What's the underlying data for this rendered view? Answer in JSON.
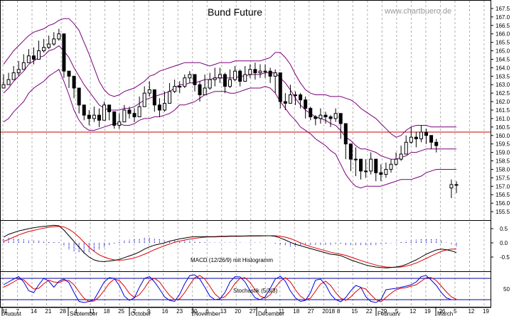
{
  "chart_data": {
    "type": "candlestick",
    "title": "Bund Future",
    "watermark": "www.chartbuero.de",
    "colors": {
      "price": "#000000",
      "bollinger": "#7a007a",
      "support_line": "#cc0000",
      "macd": "#000000",
      "signal": "#dd0000",
      "histogram": "#0000cc",
      "stoch_k": "#0000dd",
      "stoch_d": "#dd0000",
      "stoch_levels": "#0000aa",
      "grid": "#b0b0b0"
    },
    "price_panel": {
      "ylim": [
        155.0,
        168.0
      ],
      "yticks": [
        "155.5",
        "156.0",
        "156.5",
        "157.0",
        "157.5",
        "158.0",
        "158.5",
        "159.0",
        "159.5",
        "160.0",
        "160.5",
        "161.0",
        "161.5",
        "162.0",
        "162.5",
        "163.0",
        "163.5",
        "164.0",
        "164.5",
        "165.0",
        "165.5",
        "166.0",
        "166.5",
        "167.0",
        "167.5"
      ],
      "horizontal_line": 160.2,
      "close": [
        163.0,
        163.3,
        163.7,
        163.9,
        164.3,
        164.7,
        164.5,
        165.0,
        165.2,
        165.4,
        165.7,
        166.0,
        163.8,
        163.5,
        162.8,
        161.8,
        161.2,
        161.0,
        161.2,
        160.9,
        161.8,
        161.4,
        160.6,
        160.8,
        161.5,
        161.3,
        161.1,
        161.7,
        162.5,
        162.7,
        161.8,
        161.5,
        161.9,
        162.6,
        162.9,
        162.9,
        163.4,
        163.6,
        163.0,
        162.4,
        162.8,
        163.3,
        163.4,
        163.6,
        162.9,
        163.3,
        163.8,
        163.2,
        163.6,
        163.9,
        163.7,
        163.8,
        163.8,
        163.5,
        163.7,
        162.0,
        161.9,
        162.4,
        162.4,
        162.1,
        161.6,
        161.1,
        161.0,
        161.2,
        161.1,
        161.0,
        161.3,
        160.7,
        159.5,
        158.6,
        158.6,
        157.9,
        157.9,
        158.6,
        157.8,
        157.7,
        158.0,
        158.3,
        158.6,
        158.9,
        159.6,
        159.9,
        159.8,
        160.2,
        160.0,
        159.6,
        159.4,
        null,
        null,
        157.1,
        157.1
      ],
      "high": [
        163.6,
        163.7,
        164.1,
        164.4,
        164.8,
        165.1,
        165.2,
        165.6,
        165.7,
        165.9,
        166.1,
        166.3,
        164.0,
        163.6,
        163.1,
        162.3,
        161.7,
        161.5,
        161.7,
        161.6,
        162.0,
        161.6,
        161.2,
        161.3,
        161.8,
        161.7,
        161.6,
        162.3,
        162.9,
        163.2,
        162.2,
        162.2,
        162.6,
        163.1,
        163.3,
        163.2,
        163.6,
        163.8,
        163.5,
        163.2,
        163.6,
        163.7,
        164.0,
        164.0,
        163.7,
        163.9,
        164.1,
        163.9,
        164.1,
        164.2,
        164.3,
        164.2,
        164.2,
        164.0,
        163.9,
        163.1,
        162.5,
        163.0,
        162.6,
        162.5,
        162.3,
        161.7,
        161.2,
        161.6,
        161.4,
        161.2,
        161.6,
        161.2,
        160.2,
        159.5,
        159.3,
        158.6,
        158.6,
        159.0,
        158.5,
        158.3,
        158.4,
        158.6,
        159.0,
        159.4,
        160.0,
        160.5,
        160.2,
        160.6,
        160.4,
        160.0,
        159.8,
        null,
        null,
        157.4,
        157.3
      ],
      "low": [
        162.8,
        163.0,
        163.3,
        163.5,
        164.0,
        164.3,
        164.2,
        164.6,
        164.9,
        165.1,
        165.3,
        165.6,
        163.4,
        162.8,
        162.2,
        161.3,
        160.9,
        160.6,
        160.8,
        160.5,
        161.2,
        160.9,
        160.4,
        160.4,
        161.0,
        161.0,
        160.8,
        161.3,
        162.1,
        162.3,
        161.4,
        161.1,
        161.4,
        162.2,
        162.5,
        162.5,
        162.8,
        163.1,
        162.6,
        162.0,
        162.4,
        162.7,
        162.9,
        163.1,
        162.5,
        162.8,
        163.2,
        162.9,
        163.2,
        163.4,
        163.3,
        163.4,
        163.4,
        163.1,
        162.5,
        161.6,
        161.5,
        161.9,
        161.8,
        161.6,
        161.0,
        160.9,
        160.6,
        160.7,
        160.7,
        160.5,
        160.8,
        159.8,
        158.6,
        157.9,
        157.6,
        157.4,
        157.5,
        157.7,
        157.3,
        157.3,
        157.5,
        157.8,
        158.2,
        158.5,
        159.0,
        159.5,
        159.3,
        159.6,
        159.5,
        159.2,
        159.0,
        null,
        null,
        156.3,
        156.6
      ],
      "bb_upper": [
        164.2,
        164.6,
        165.0,
        165.3,
        165.6,
        165.9,
        166.1,
        166.2,
        166.3,
        166.5,
        166.6,
        166.8,
        166.9,
        166.9,
        166.6,
        166.2,
        165.5,
        164.8,
        164.0,
        163.2,
        162.7,
        162.4,
        162.3,
        162.4,
        162.6,
        162.7,
        162.8,
        163.0,
        163.2,
        163.5,
        163.6,
        163.8,
        163.9,
        164.0,
        164.1,
        164.2,
        164.3,
        164.3,
        164.3,
        164.3,
        164.2,
        164.1,
        164.2,
        164.3,
        164.3,
        164.3,
        164.4,
        164.4,
        164.4,
        164.4,
        164.4,
        164.4,
        164.5,
        164.6,
        164.9,
        164.9,
        164.6,
        164.2,
        163.6,
        163.1,
        162.7,
        162.5,
        162.4,
        162.4,
        162.4,
        162.3,
        162.3,
        162.3,
        162.2,
        162.1,
        161.9,
        161.6,
        161.4,
        161.2,
        161.0,
        160.7,
        160.4,
        160.1,
        159.9,
        160.0,
        160.3,
        160.5,
        160.6,
        160.6,
        160.6,
        160.5,
        160.5,
        160.5,
        160.5,
        160.5,
        160.5
      ],
      "bb_lower": [
        160.8,
        161.0,
        161.4,
        161.7,
        162.0,
        162.5,
        162.8,
        163.0,
        163.2,
        163.5,
        163.7,
        163.9,
        163.2,
        162.4,
        161.5,
        160.9,
        160.5,
        160.3,
        160.3,
        160.4,
        160.5,
        160.6,
        160.7,
        160.7,
        160.6,
        160.6,
        160.7,
        160.9,
        161.0,
        161.0,
        161.1,
        161.1,
        161.2,
        161.3,
        161.5,
        161.8,
        161.8,
        161.9,
        162.0,
        162.2,
        162.4,
        162.5,
        162.6,
        162.6,
        162.6,
        162.5,
        162.5,
        162.6,
        162.7,
        162.8,
        162.8,
        162.8,
        162.9,
        162.8,
        162.5,
        162.0,
        161.6,
        161.2,
        160.9,
        160.5,
        160.3,
        160.1,
        159.8,
        159.6,
        159.4,
        159.1,
        158.9,
        158.3,
        157.7,
        157.3,
        157.0,
        156.9,
        157.0,
        157.0,
        157.0,
        157.0,
        157.1,
        157.2,
        157.3,
        157.4,
        157.4,
        157.4,
        157.5,
        157.6,
        157.8,
        157.9,
        158.0,
        158.0,
        158.0,
        158.0,
        158.0
      ],
      "bb_mid": [
        162.5,
        162.8,
        163.2,
        163.5,
        163.8,
        164.2,
        164.4,
        164.6,
        164.7,
        165.0,
        165.1,
        165.3,
        165.0,
        164.6,
        164.0,
        163.5,
        163.0,
        162.6,
        162.2,
        161.8,
        161.6,
        161.5,
        161.5,
        161.5,
        161.6,
        161.6,
        161.7,
        161.9,
        162.1,
        162.2,
        162.3,
        162.4,
        162.5,
        162.6,
        162.8,
        163.0,
        163.0,
        163.1,
        163.1,
        163.2,
        163.3,
        163.3,
        163.4,
        163.4,
        163.4,
        163.4,
        163.4,
        163.5,
        163.5,
        163.6,
        163.6,
        163.6,
        163.7,
        163.7,
        163.7,
        163.4,
        163.1,
        162.7,
        162.2,
        161.8,
        161.5,
        161.3,
        161.1,
        161.0,
        160.9,
        160.7,
        160.6,
        160.3,
        159.9,
        159.7,
        159.4,
        159.2,
        159.2,
        159.1,
        159.0,
        158.8,
        158.7,
        158.6,
        158.6,
        158.7,
        158.8,
        159.0,
        159.0,
        159.1,
        159.2,
        159.2,
        159.2,
        159.2,
        159.2,
        159.2,
        159.2
      ]
    },
    "macd_panel": {
      "label": "MACD (12/26/9) mit Histogramm",
      "yticks": [
        "0.5",
        "0.0",
        "-0.5"
      ],
      "ylim": [
        -1.0,
        0.8
      ],
      "macd": [
        0.2,
        0.3,
        0.36,
        0.42,
        0.46,
        0.5,
        0.53,
        0.56,
        0.58,
        0.6,
        0.62,
        0.6,
        0.45,
        0.25,
        0.05,
        -0.15,
        -0.35,
        -0.5,
        -0.6,
        -0.65,
        -0.66,
        -0.64,
        -0.62,
        -0.58,
        -0.52,
        -0.46,
        -0.4,
        -0.32,
        -0.22,
        -0.14,
        -0.08,
        -0.04,
        0.0,
        0.06,
        0.1,
        0.14,
        0.17,
        0.2,
        0.22,
        0.22,
        0.22,
        0.22,
        0.22,
        0.23,
        0.23,
        0.24,
        0.24,
        0.24,
        0.24,
        0.25,
        0.25,
        0.25,
        0.25,
        0.25,
        0.23,
        0.17,
        0.1,
        0.02,
        -0.05,
        -0.1,
        -0.15,
        -0.2,
        -0.25,
        -0.3,
        -0.35,
        -0.4,
        -0.42,
        -0.45,
        -0.52,
        -0.6,
        -0.66,
        -0.72,
        -0.78,
        -0.82,
        -0.85,
        -0.87,
        -0.88,
        -0.87,
        -0.85,
        -0.82,
        -0.76,
        -0.68,
        -0.6,
        -0.5,
        -0.4,
        -0.32,
        -0.25,
        -0.22,
        -0.24,
        -0.28,
        -0.34
      ],
      "signal": [
        0.05,
        0.12,
        0.2,
        0.28,
        0.34,
        0.4,
        0.44,
        0.48,
        0.52,
        0.55,
        0.57,
        0.58,
        0.56,
        0.48,
        0.36,
        0.2,
        0.02,
        -0.15,
        -0.3,
        -0.42,
        -0.5,
        -0.56,
        -0.6,
        -0.61,
        -0.6,
        -0.57,
        -0.53,
        -0.47,
        -0.4,
        -0.32,
        -0.24,
        -0.17,
        -0.1,
        -0.04,
        0.02,
        0.06,
        0.1,
        0.13,
        0.16,
        0.18,
        0.2,
        0.21,
        0.21,
        0.22,
        0.22,
        0.23,
        0.23,
        0.23,
        0.24,
        0.24,
        0.24,
        0.24,
        0.25,
        0.25,
        0.25,
        0.23,
        0.2,
        0.15,
        0.08,
        0.0,
        -0.07,
        -0.13,
        -0.18,
        -0.23,
        -0.28,
        -0.33,
        -0.37,
        -0.4,
        -0.44,
        -0.5,
        -0.56,
        -0.62,
        -0.68,
        -0.73,
        -0.78,
        -0.82,
        -0.85,
        -0.86,
        -0.86,
        -0.85,
        -0.82,
        -0.77,
        -0.71,
        -0.63,
        -0.55,
        -0.46,
        -0.38,
        -0.3,
        -0.25,
        -0.22,
        -0.22
      ],
      "histogram": [
        0.15,
        0.18,
        0.16,
        0.14,
        0.12,
        0.1,
        0.09,
        0.08,
        0.06,
        0.05,
        0.05,
        0.02,
        -0.11,
        -0.23,
        -0.31,
        -0.35,
        -0.37,
        -0.35,
        -0.3,
        -0.23,
        -0.16,
        -0.08,
        -0.02,
        0.03,
        0.08,
        0.11,
        0.13,
        0.15,
        0.18,
        0.18,
        0.16,
        0.13,
        0.1,
        0.1,
        0.08,
        0.08,
        0.07,
        0.07,
        0.06,
        0.04,
        0.02,
        0.01,
        0.01,
        0.01,
        0.01,
        0.01,
        0.01,
        0.01,
        0.0,
        0.01,
        0.01,
        0.01,
        0.0,
        0.0,
        -0.02,
        -0.06,
        -0.1,
        -0.13,
        -0.13,
        -0.1,
        -0.08,
        -0.07,
        -0.07,
        -0.07,
        -0.07,
        -0.07,
        -0.05,
        -0.05,
        -0.08,
        -0.1,
        -0.1,
        -0.1,
        -0.1,
        -0.09,
        -0.07,
        -0.05,
        -0.03,
        -0.01,
        0.01,
        0.03,
        0.06,
        0.09,
        0.11,
        0.13,
        0.15,
        0.14,
        0.13,
        0.08,
        0.01,
        -0.06,
        -0.12
      ]
    },
    "stoch_panel": {
      "label": "Stochastik (5/3/3)",
      "yticks": [
        "50"
      ],
      "levels": [
        80,
        20
      ],
      "ylim": [
        0,
        100
      ],
      "k": [
        62,
        70,
        78,
        85,
        70,
        45,
        40,
        62,
        80,
        72,
        55,
        72,
        78,
        68,
        40,
        15,
        12,
        15,
        20,
        45,
        70,
        82,
        80,
        60,
        30,
        18,
        25,
        55,
        80,
        85,
        70,
        50,
        28,
        18,
        15,
        35,
        65,
        88,
        90,
        78,
        55,
        30,
        20,
        22,
        40,
        70,
        85,
        84,
        70,
        45,
        25,
        20,
        28,
        52,
        78,
        86,
        72,
        45,
        25,
        15,
        18,
        40,
        75,
        78,
        62,
        35,
        20,
        14,
        26,
        45,
        60,
        55,
        28,
        15,
        12,
        20,
        48,
        50,
        52,
        55,
        58,
        62,
        70,
        85,
        88,
        75,
        60,
        40,
        25,
        20,
        20
      ],
      "d": [
        55,
        62,
        70,
        78,
        76,
        62,
        50,
        52,
        65,
        75,
        70,
        68,
        74,
        74,
        62,
        42,
        24,
        15,
        16,
        28,
        46,
        66,
        78,
        74,
        58,
        38,
        26,
        34,
        52,
        74,
        80,
        70,
        50,
        32,
        20,
        22,
        40,
        62,
        82,
        88,
        78,
        58,
        36,
        24,
        28,
        44,
        66,
        80,
        82,
        68,
        48,
        30,
        24,
        34,
        54,
        72,
        82,
        70,
        48,
        30,
        20,
        24,
        44,
        64,
        72,
        60,
        40,
        24,
        18,
        28,
        42,
        54,
        50,
        34,
        20,
        14,
        26,
        38,
        48,
        52,
        54,
        58,
        62,
        72,
        82,
        82,
        74,
        58,
        42,
        28,
        21
      ]
    },
    "x_axis": {
      "day_ticks": [
        "31",
        "7",
        "14",
        "21",
        "28",
        "4",
        "11",
        "18",
        "25",
        "2",
        "9",
        "16",
        "23",
        "30",
        "6",
        "13",
        "20",
        "27",
        "4",
        "11",
        "18",
        "27",
        "2018",
        "8",
        "15",
        "22",
        "29",
        "5",
        "12",
        "19",
        "26",
        "5",
        "12",
        "19"
      ],
      "months": [
        "August",
        "September",
        "October",
        "November",
        "December",
        "February",
        "March"
      ]
    }
  }
}
